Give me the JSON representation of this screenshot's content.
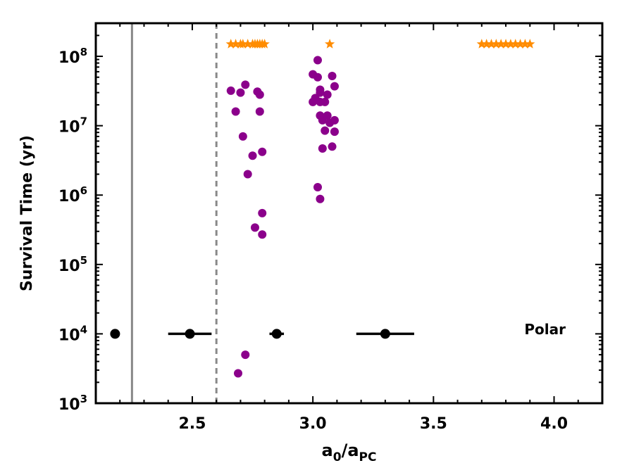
{
  "chart_data": {
    "type": "scatter",
    "title": "",
    "xlabel": "a0/aPC",
    "xlabel_parts": {
      "base": "a",
      "sub1": "0",
      "sep": "/a",
      "sub2": "PC"
    },
    "ylabel": "Survival Time (yr)",
    "xlim": [
      2.1,
      4.2
    ],
    "ylim": [
      1000,
      300000000
    ],
    "yscale": "log",
    "grid": false,
    "x_ticks": [
      2.5,
      3.0,
      3.5,
      4.0
    ],
    "x_tick_labels": [
      "2.5",
      "3.0",
      "3.5",
      "4.0"
    ],
    "y_ticks": [
      1000,
      10000,
      100000,
      1000000,
      10000000,
      100000000
    ],
    "y_tick_labels": [
      {
        "base": "10",
        "exp": "3"
      },
      {
        "base": "10",
        "exp": "4"
      },
      {
        "base": "10",
        "exp": "5"
      },
      {
        "base": "10",
        "exp": "6"
      },
      {
        "base": "10",
        "exp": "7"
      },
      {
        "base": "10",
        "exp": "8"
      }
    ],
    "annotation": "Polar",
    "vertical_lines": [
      {
        "x": 2.25,
        "style": "solid",
        "color": "#888888"
      },
      {
        "x": 2.6,
        "style": "dashed",
        "color": "#888888"
      }
    ],
    "series": [
      {
        "marker": "circle",
        "color": "#8b008b",
        "points": [
          [
            2.66,
            32000000
          ],
          [
            2.68,
            16000000
          ],
          [
            2.7,
            30000000
          ],
          [
            2.71,
            7000000
          ],
          [
            2.72,
            39000000
          ],
          [
            2.73,
            2000000
          ],
          [
            2.75,
            3700000
          ],
          [
            2.77,
            31000000
          ],
          [
            2.78,
            28000000
          ],
          [
            2.78,
            16000000
          ],
          [
            2.79,
            4200000
          ],
          [
            2.79,
            550000
          ],
          [
            2.76,
            340000
          ],
          [
            2.79,
            270000
          ],
          [
            2.72,
            5000
          ],
          [
            2.69,
            2700
          ],
          [
            3.0,
            22000000
          ],
          [
            3.0,
            55000000
          ],
          [
            3.01,
            25000000
          ],
          [
            3.02,
            50000000
          ],
          [
            3.02,
            88000000
          ],
          [
            3.03,
            33000000
          ],
          [
            3.03,
            30000000
          ],
          [
            3.03,
            22000000
          ],
          [
            3.03,
            14000000
          ],
          [
            3.04,
            12000000
          ],
          [
            3.05,
            8500000
          ],
          [
            3.05,
            22000000
          ],
          [
            3.06,
            28000000
          ],
          [
            3.06,
            14000000
          ],
          [
            3.07,
            11000000
          ],
          [
            3.08,
            52000000
          ],
          [
            3.09,
            37000000
          ],
          [
            3.09,
            12000000
          ],
          [
            3.09,
            8200000
          ],
          [
            3.08,
            5000000
          ],
          [
            3.04,
            4700000
          ],
          [
            3.02,
            1300000
          ],
          [
            3.03,
            880000
          ]
        ]
      },
      {
        "marker": "star",
        "color": "#ff8c00",
        "y": 150000000,
        "x": [
          2.66,
          2.68,
          2.7,
          2.71,
          2.73,
          2.75,
          2.76,
          2.77,
          2.78,
          2.79,
          2.8,
          3.07,
          3.7,
          3.72,
          3.74,
          3.76,
          3.78,
          3.8,
          3.82,
          3.84,
          3.86,
          3.88,
          3.9
        ]
      },
      {
        "marker": "circle-errorbar",
        "color": "#000000",
        "points": [
          {
            "x": 2.18,
            "y": 10000,
            "xerr": [
              0,
              0
            ]
          },
          {
            "x": 2.49,
            "y": 10000,
            "xerr": [
              0.09,
              0.09
            ]
          },
          {
            "x": 2.85,
            "y": 10000,
            "xerr": [
              0.03,
              0.03
            ]
          },
          {
            "x": 3.3,
            "y": 10000,
            "xerr": [
              0.12,
              0.12
            ]
          }
        ]
      }
    ]
  }
}
